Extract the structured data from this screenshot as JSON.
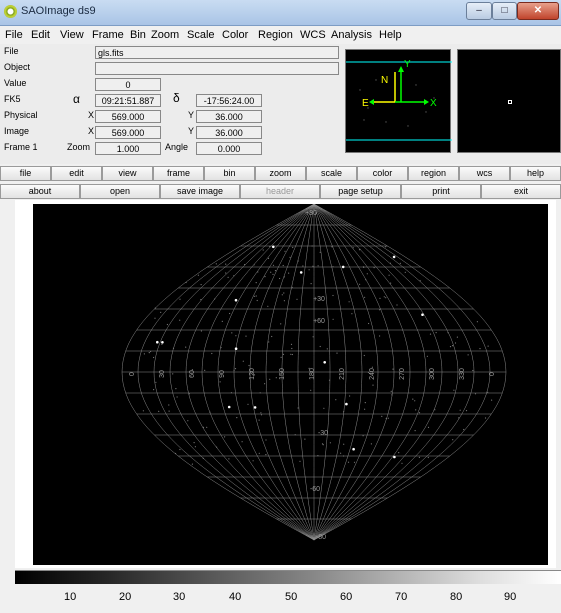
{
  "window": {
    "title": "SAOImage ds9",
    "controls": [
      "–",
      "□",
      "✕"
    ]
  },
  "menu": [
    "File",
    "Edit",
    "View",
    "Frame",
    "Bin",
    "Zoom",
    "Scale",
    "Color",
    "Region",
    "WCS",
    "Analysis",
    "Help"
  ],
  "info": {
    "file_label": "File",
    "file_value": "gls.fits",
    "object_label": "Object",
    "object_value": "",
    "value_label": "Value",
    "value_value": "0",
    "wcs_label": "FK5",
    "alpha_symbol": "α",
    "alpha_value": "09:21:51.887",
    "delta_symbol": "δ",
    "delta_value": "-17:56:24.00",
    "physical_label": "Physical",
    "physical_x_label": "X",
    "physical_x": "569.000",
    "physical_y_label": "Y",
    "physical_y": "36.000",
    "image_label": "Image",
    "image_x_label": "X",
    "image_x": "569.000",
    "image_y_label": "Y",
    "image_y": "36.000",
    "frame_label": "Frame 1",
    "zoom_label": "Zoom",
    "zoom_value": "1.000",
    "angle_label": "Angle",
    "angle_value": "0.000"
  },
  "magnifier": {
    "north": "N",
    "east": "E",
    "x_axis": "X",
    "y_axis": "Y"
  },
  "buttonbar_top": [
    "file",
    "edit",
    "view",
    "frame",
    "bin",
    "zoom",
    "scale",
    "color",
    "region",
    "wcs",
    "help"
  ],
  "buttonbar_bottom": [
    "about",
    "open",
    "save image",
    "header",
    "page setup",
    "print",
    "exit"
  ],
  "grid_labels": {
    "dec_top": "+80",
    "dec_p60": "+60",
    "dec_p30": "+30",
    "dec_m30": "-30",
    "dec_m60": "-60",
    "dec_bottom": "-80",
    "equator": [
      "0",
      "30",
      "60",
      "90",
      "120",
      "150",
      "180",
      "210",
      "240",
      "270",
      "300",
      "330",
      "0"
    ]
  },
  "colorbar": {
    "ticks": [
      "10",
      "20",
      "30",
      "40",
      "50",
      "60",
      "70",
      "80",
      "90"
    ]
  },
  "colors": {
    "titlebar": "#b4cbe8",
    "canvas": "#000000",
    "grid": "#8c8c8c",
    "compass": "#ffff00",
    "axes": "#00ff00",
    "cyan_line": "#00ffff"
  }
}
